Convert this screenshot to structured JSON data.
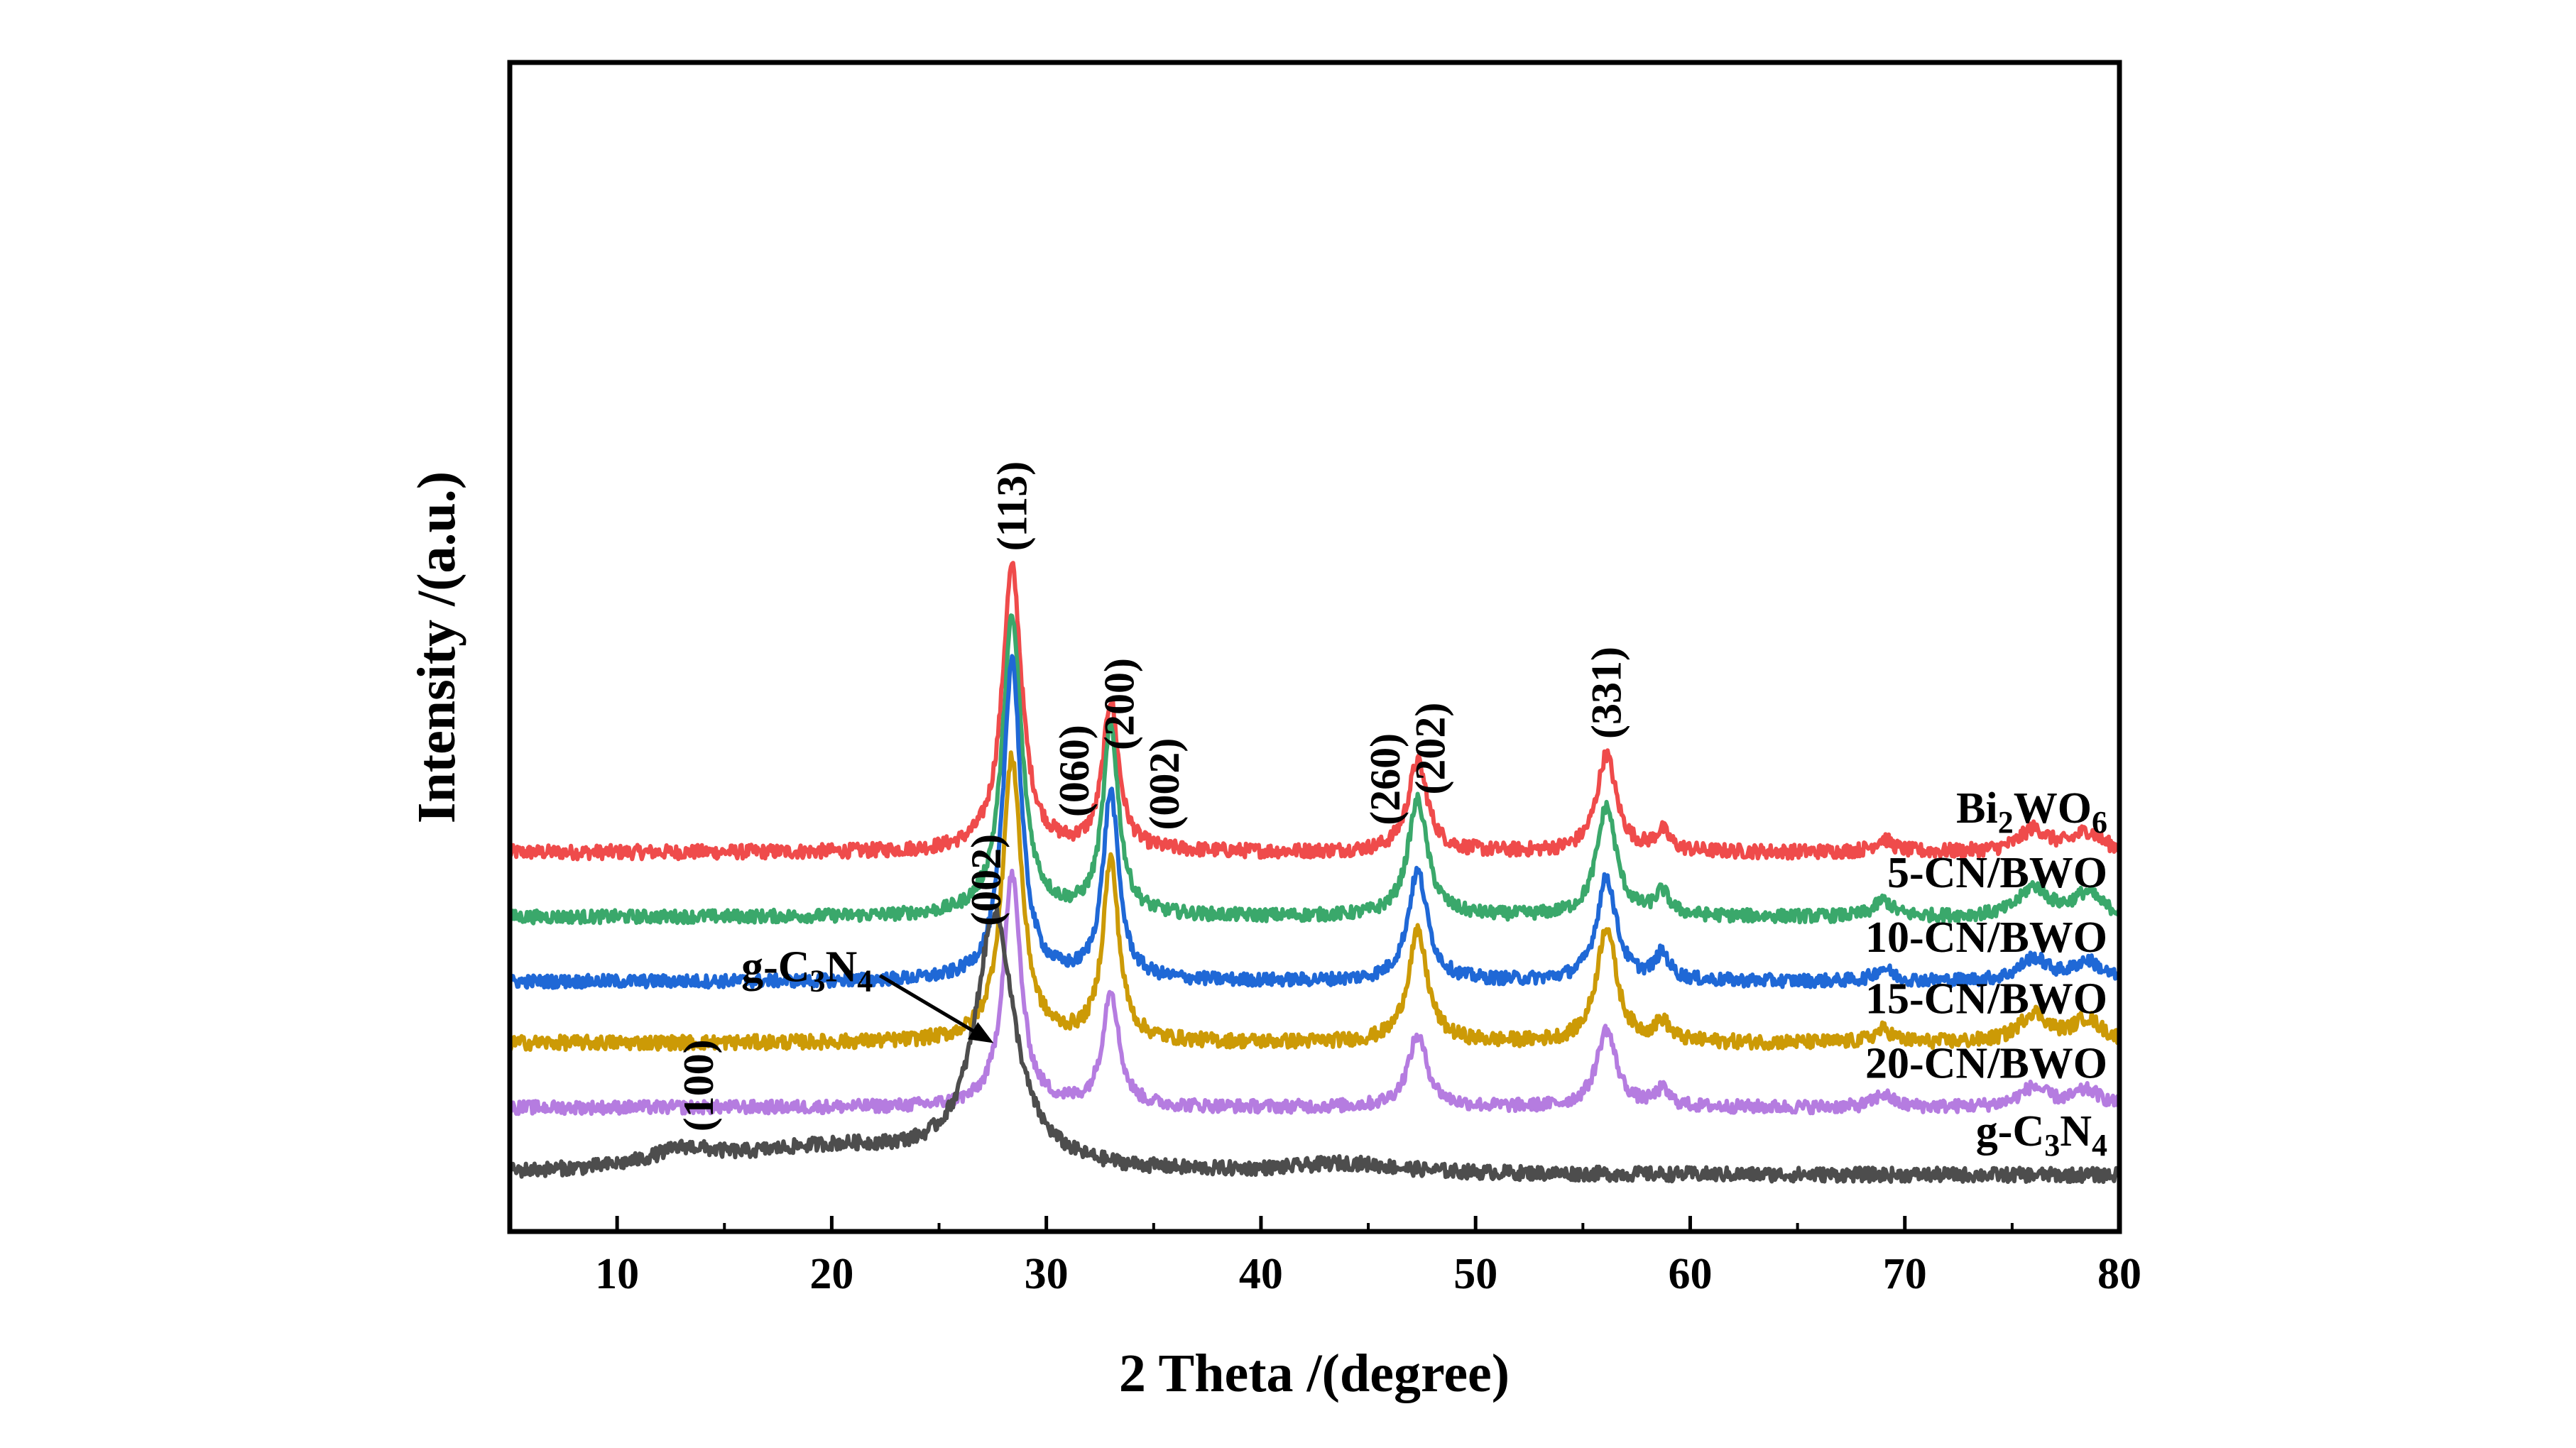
{
  "chart_data": {
    "type": "line",
    "title": "",
    "xlabel": "2 Theta /(degree)",
    "ylabel": "Intensity /(a.u.)",
    "xlim": [
      5,
      80
    ],
    "x_ticks": [
      10,
      20,
      30,
      40,
      50,
      60,
      70,
      80
    ],
    "grid": false,
    "legend": "inline-right",
    "y_units": "arbitrary (stacked offsets)",
    "series": [
      {
        "name": "Bi2WO6",
        "label_main": "Bi",
        "label_sub1": "2",
        "label_mid": "WO",
        "label_sub2": "6",
        "color": "#ef4b4b",
        "baseline": 100,
        "noise": 2.2,
        "peaks": [
          {
            "x": 28.4,
            "h": 88,
            "w": 0.55
          },
          {
            "x": 33.0,
            "h": 46,
            "w": 0.45
          },
          {
            "x": 47.3,
            "h": 28,
            "w": 0.55
          },
          {
            "x": 56.1,
            "h": 30,
            "w": 0.55
          },
          {
            "x": 58.7,
            "h": 6,
            "w": 0.4
          },
          {
            "x": 69.0,
            "h": 4,
            "w": 0.5
          },
          {
            "x": 76.0,
            "h": 7,
            "w": 0.8
          },
          {
            "x": 78.5,
            "h": 6,
            "w": 0.8
          }
        ]
      },
      {
        "name": "5-CN/BWO",
        "color": "#3aa86b",
        "baseline": 80,
        "noise": 2.0,
        "peaks": [
          {
            "x": 28.4,
            "h": 92,
            "w": 0.55
          },
          {
            "x": 33.0,
            "h": 58,
            "w": 0.45
          },
          {
            "x": 47.3,
            "h": 36,
            "w": 0.55
          },
          {
            "x": 56.1,
            "h": 34,
            "w": 0.55
          },
          {
            "x": 58.7,
            "h": 7,
            "w": 0.4
          },
          {
            "x": 69.0,
            "h": 5,
            "w": 0.5
          },
          {
            "x": 76.0,
            "h": 9,
            "w": 0.8
          },
          {
            "x": 78.5,
            "h": 7,
            "w": 0.8
          }
        ]
      },
      {
        "name": "10-CN/BWO",
        "color": "#1f68d6",
        "baseline": 60,
        "noise": 2.0,
        "peaks": [
          {
            "x": 28.4,
            "h": 100,
            "w": 0.5
          },
          {
            "x": 33.0,
            "h": 58,
            "w": 0.45
          },
          {
            "x": 47.3,
            "h": 34,
            "w": 0.55
          },
          {
            "x": 56.1,
            "h": 32,
            "w": 0.55
          },
          {
            "x": 58.7,
            "h": 8,
            "w": 0.4
          },
          {
            "x": 69.0,
            "h": 4,
            "w": 0.5
          },
          {
            "x": 76.0,
            "h": 7,
            "w": 0.8
          },
          {
            "x": 78.5,
            "h": 6,
            "w": 0.8
          }
        ]
      },
      {
        "name": "15-CN/BWO",
        "color": "#cc9a06",
        "baseline": 41,
        "noise": 2.2,
        "peaks": [
          {
            "x": 28.4,
            "h": 88,
            "w": 0.55
          },
          {
            "x": 33.0,
            "h": 56,
            "w": 0.45
          },
          {
            "x": 47.3,
            "h": 34,
            "w": 0.55
          },
          {
            "x": 56.1,
            "h": 36,
            "w": 0.55
          },
          {
            "x": 58.7,
            "h": 6,
            "w": 0.4
          },
          {
            "x": 69.0,
            "h": 4,
            "w": 0.5
          },
          {
            "x": 76.0,
            "h": 9,
            "w": 0.8
          },
          {
            "x": 78.5,
            "h": 7,
            "w": 0.8
          }
        ]
      },
      {
        "name": "20-CN/BWO",
        "color": "#b57ce0",
        "baseline": 21,
        "noise": 2.0,
        "peaks": [
          {
            "x": 28.4,
            "h": 72,
            "w": 0.5
          },
          {
            "x": 33.0,
            "h": 36,
            "w": 0.45
          },
          {
            "x": 47.3,
            "h": 22,
            "w": 0.55
          },
          {
            "x": 56.1,
            "h": 24,
            "w": 0.55
          },
          {
            "x": 58.7,
            "h": 5,
            "w": 0.4
          },
          {
            "x": 69.0,
            "h": 4,
            "w": 0.5
          },
          {
            "x": 76.0,
            "h": 6,
            "w": 0.8
          },
          {
            "x": 78.5,
            "h": 5,
            "w": 0.8
          }
        ]
      },
      {
        "name": "g-C3N4",
        "label_main": "g-C",
        "label_sub1": "3",
        "label_mid": "N",
        "label_sub2": "4",
        "color": "#4d4d4d",
        "baseline": 0,
        "noise": 2.2,
        "peaks": [
          {
            "x": 13.1,
            "h": 5,
            "w": 1.8
          },
          {
            "x": 27.6,
            "h": 78,
            "w": 1.1
          },
          {
            "x": 20.0,
            "h": 8,
            "w": 6.0
          },
          {
            "x": 44.0,
            "h": 3,
            "w": 3.0
          }
        ]
      }
    ],
    "peak_annotations": [
      {
        "text": "(113)",
        "x": 28.4,
        "series": "Bi2WO6"
      },
      {
        "text": "(060)",
        "x": 31.3,
        "series": "Bi2WO6"
      },
      {
        "text": "(200)",
        "x": 33.4,
        "series": "Bi2WO6"
      },
      {
        "text": "(002)",
        "x": 35.5,
        "series": "Bi2WO6"
      },
      {
        "text": "(260)",
        "x": 45.8,
        "series": "Bi2WO6"
      },
      {
        "text": "(202)",
        "x": 47.9,
        "series": "Bi2WO6"
      },
      {
        "text": "(331)",
        "x": 56.1,
        "series": "Bi2WO6"
      },
      {
        "text": "(100)",
        "x": 13.8,
        "series": "g-C3N4"
      },
      {
        "text": "(002)",
        "x": 27.2,
        "series": "g-C3N4"
      }
    ],
    "arrow_annotation": {
      "label_main": "g-C",
      "label_sub1": "3",
      "label_mid": "N",
      "label_sub2": "4",
      "points_to_x": 28.4,
      "series": "20-CN/BWO"
    }
  }
}
